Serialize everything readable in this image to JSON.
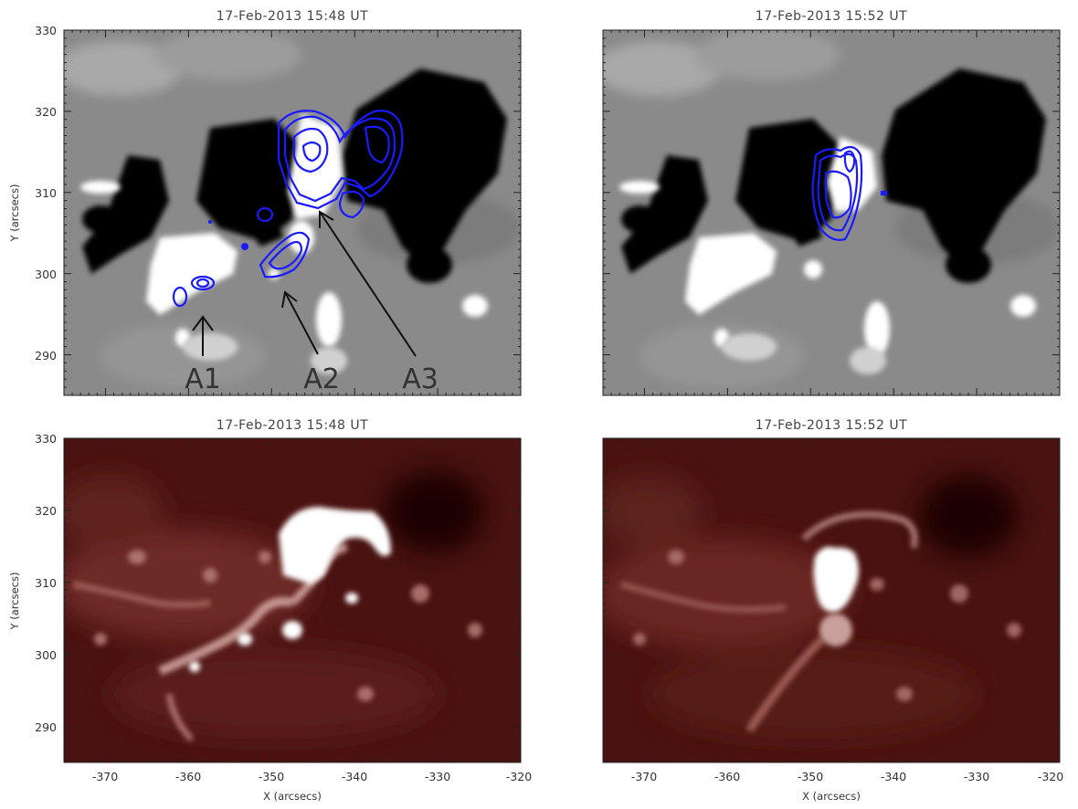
{
  "panels": [
    {
      "id": "tl",
      "title": "17-Feb-2013 15:48 UT",
      "kind": "magnetogram",
      "contours": true,
      "labels": [
        "A1",
        "A2",
        "A3"
      ]
    },
    {
      "id": "tr",
      "title": "17-Feb-2013 15:52 UT",
      "kind": "magnetogram",
      "contours": true
    },
    {
      "id": "bl",
      "title": "17-Feb-2013 15:48 UT",
      "kind": "euv"
    },
    {
      "id": "br",
      "title": "17-Feb-2013 15:52 UT",
      "kind": "euv"
    }
  ],
  "axes": {
    "xlabel": "X (arcsecs)",
    "ylabel": "Y (arcsecs)",
    "x_ticks": [
      "-370",
      "-360",
      "-350",
      "-340",
      "-330",
      "-320"
    ],
    "y_ticks": [
      "330",
      "320",
      "310",
      "300",
      "290"
    ],
    "x_range": [
      -375,
      -320
    ],
    "y_range": [
      285,
      330
    ]
  },
  "colors": {
    "magnetogram_bg": "#8a8a8a",
    "euv_bg": "#4a1210",
    "contour": "#1a1aff"
  }
}
